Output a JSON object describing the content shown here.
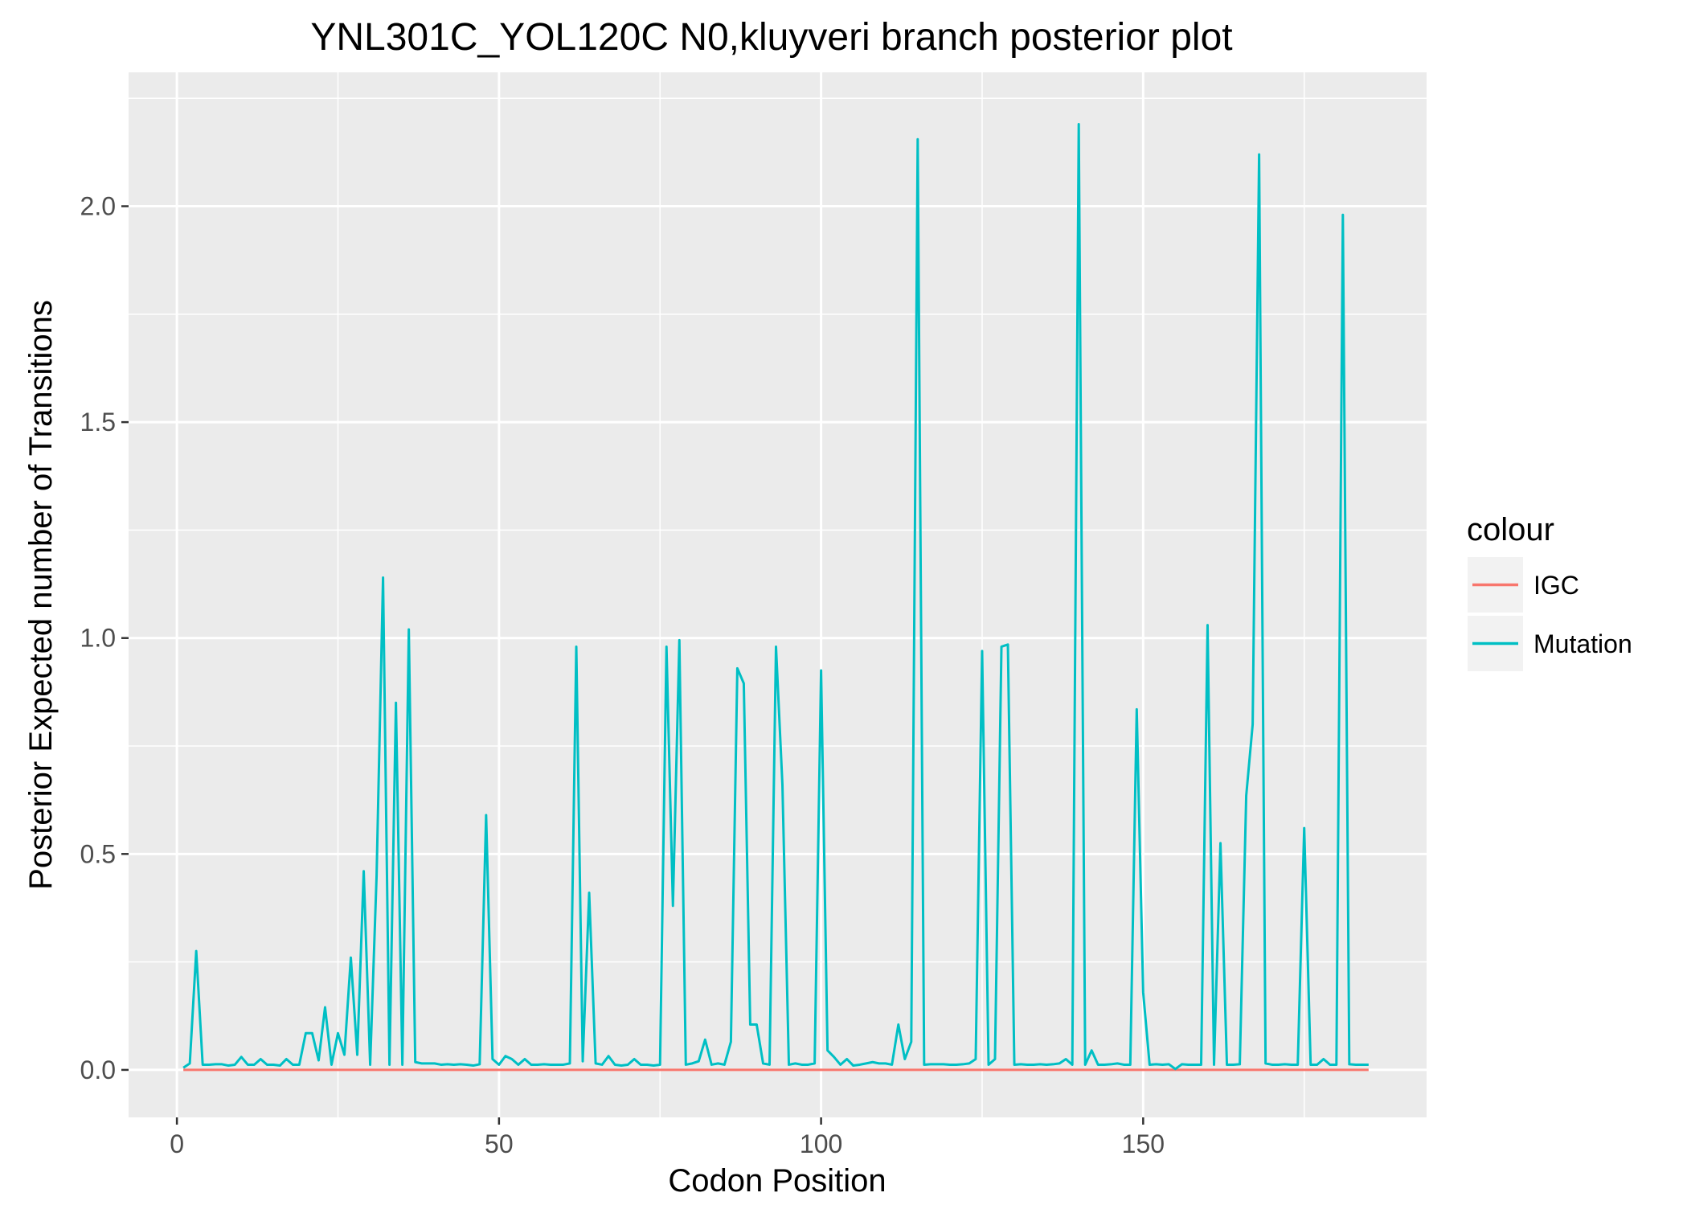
{
  "chart_data": {
    "type": "line",
    "title": "YNL301C_YOL120C N0,kluyveri branch posterior plot",
    "xlabel": "Codon Position",
    "ylabel": "Posterior Expected number of Transitions",
    "xlim": [
      -7.5,
      194
    ],
    "ylim": [
      -0.11,
      2.31
    ],
    "x_ticks": [
      0,
      50,
      100,
      150
    ],
    "y_ticks": [
      0.0,
      0.5,
      1.0,
      1.5,
      2.0
    ],
    "x_tick_labels": [
      "0",
      "50",
      "100",
      "150"
    ],
    "y_tick_labels": [
      "0.0",
      "0.5",
      "1.0",
      "1.5",
      "2.0"
    ],
    "grid": true,
    "legend": {
      "title": "colour",
      "position": "right"
    },
    "series": [
      {
        "name": "IGC",
        "color": "#F8766D",
        "x": [
          1,
          185
        ],
        "y": [
          0.0,
          0.0
        ]
      },
      {
        "name": "Mutation",
        "color": "#00BFC4",
        "x": [
          1,
          2,
          3,
          4,
          5,
          6,
          7,
          8,
          9,
          10,
          11,
          12,
          13,
          14,
          15,
          16,
          17,
          18,
          19,
          20,
          21,
          22,
          23,
          24,
          25,
          26,
          27,
          28,
          29,
          30,
          31,
          32,
          33,
          34,
          35,
          36,
          37,
          38,
          39,
          40,
          41,
          42,
          43,
          44,
          45,
          46,
          47,
          48,
          49,
          50,
          51,
          52,
          53,
          54,
          55,
          56,
          57,
          58,
          59,
          60,
          61,
          62,
          63,
          64,
          65,
          66,
          67,
          68,
          69,
          70,
          71,
          72,
          73,
          74,
          75,
          76,
          77,
          78,
          79,
          80,
          81,
          82,
          83,
          84,
          85,
          86,
          87,
          88,
          89,
          90,
          91,
          92,
          93,
          94,
          95,
          96,
          97,
          98,
          99,
          100,
          101,
          102,
          103,
          104,
          105,
          106,
          107,
          108,
          109,
          110,
          111,
          112,
          113,
          114,
          115,
          116,
          117,
          118,
          119,
          120,
          121,
          122,
          123,
          124,
          125,
          126,
          127,
          128,
          129,
          130,
          131,
          132,
          133,
          134,
          135,
          136,
          137,
          138,
          139,
          140,
          141,
          142,
          143,
          144,
          145,
          146,
          147,
          148,
          149,
          150,
          151,
          152,
          153,
          154,
          155,
          156,
          157,
          158,
          159,
          160,
          161,
          162,
          163,
          164,
          165,
          166,
          167,
          168,
          169,
          170,
          171,
          172,
          173,
          174,
          175,
          176,
          177,
          178,
          179,
          180,
          181,
          182,
          183,
          184,
          185
        ],
        "y": [
          0.005,
          0.015,
          0.275,
          0.012,
          0.012,
          0.013,
          0.013,
          0.01,
          0.012,
          0.03,
          0.012,
          0.012,
          0.025,
          0.012,
          0.012,
          0.01,
          0.025,
          0.012,
          0.012,
          0.085,
          0.085,
          0.022,
          0.145,
          0.012,
          0.085,
          0.035,
          0.26,
          0.035,
          0.46,
          0.012,
          0.45,
          1.14,
          0.012,
          0.85,
          0.012,
          1.02,
          0.018,
          0.015,
          0.015,
          0.015,
          0.012,
          0.013,
          0.012,
          0.013,
          0.012,
          0.01,
          0.013,
          0.59,
          0.025,
          0.012,
          0.032,
          0.025,
          0.012,
          0.025,
          0.012,
          0.012,
          0.013,
          0.012,
          0.012,
          0.012,
          0.015,
          0.98,
          0.02,
          0.41,
          0.015,
          0.012,
          0.032,
          0.012,
          0.01,
          0.012,
          0.025,
          0.012,
          0.012,
          0.01,
          0.012,
          0.98,
          0.38,
          0.995,
          0.012,
          0.015,
          0.02,
          0.07,
          0.012,
          0.015,
          0.012,
          0.065,
          0.93,
          0.895,
          0.105,
          0.105,
          0.015,
          0.012,
          0.98,
          0.66,
          0.012,
          0.015,
          0.012,
          0.012,
          0.015,
          0.925,
          0.045,
          0.03,
          0.012,
          0.025,
          0.01,
          0.012,
          0.015,
          0.018,
          0.015,
          0.015,
          0.012,
          0.105,
          0.025,
          0.065,
          2.155,
          0.012,
          0.013,
          0.013,
          0.013,
          0.012,
          0.012,
          0.013,
          0.015,
          0.025,
          0.97,
          0.012,
          0.025,
          0.98,
          0.985,
          0.012,
          0.013,
          0.012,
          0.012,
          0.013,
          0.012,
          0.013,
          0.015,
          0.025,
          0.012,
          2.19,
          0.012,
          0.045,
          0.012,
          0.012,
          0.013,
          0.015,
          0.012,
          0.012,
          0.835,
          0.18,
          0.012,
          0.013,
          0.012,
          0.013,
          0.002,
          0.013,
          0.012,
          0.012,
          0.012,
          1.03,
          0.012,
          0.525,
          0.012,
          0.012,
          0.013,
          0.635,
          0.8,
          2.12,
          0.015,
          0.012,
          0.012,
          0.013,
          0.012,
          0.012,
          0.56,
          0.012,
          0.012,
          0.025,
          0.012,
          0.012,
          1.98,
          0.013,
          0.012,
          0.012,
          0.012
        ]
      }
    ]
  }
}
